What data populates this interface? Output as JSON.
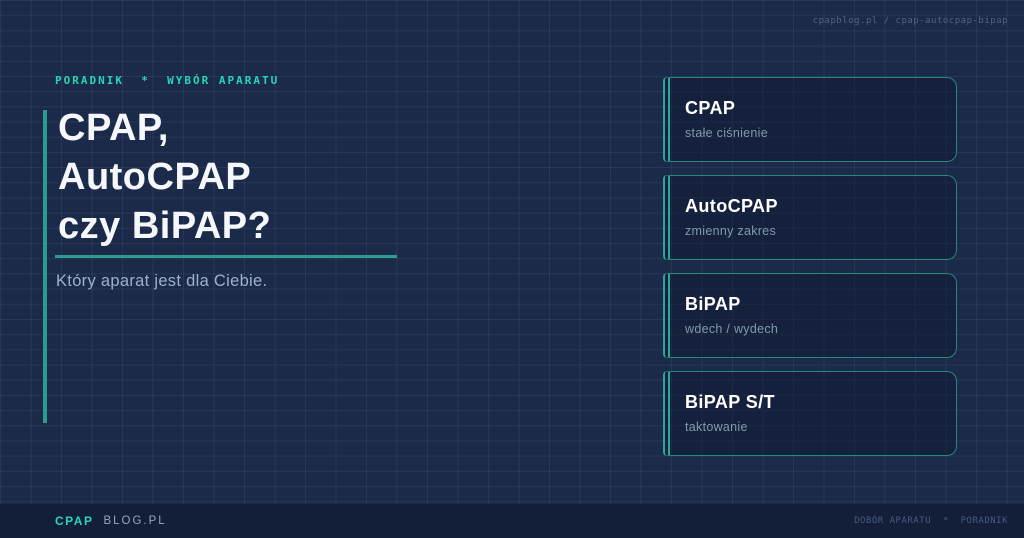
{
  "header": {
    "slug": "cpapblog.pl / cpap-autocpap-bipap"
  },
  "hero": {
    "eyebrow": "PORADNIK  *  WYBÓR APARATU",
    "title_lines": [
      "CPAP,",
      "AutoCPAP",
      "czy BiPAP?"
    ],
    "subtitle": "Który aparat jest dla Ciebie."
  },
  "cards": [
    {
      "title": "CPAP",
      "subtitle": "stałe ciśnienie"
    },
    {
      "title": "AutoCPAP",
      "subtitle": "zmienny zakres"
    },
    {
      "title": "BiPAP",
      "subtitle": "wdech / wydech"
    },
    {
      "title": "BiPAP S/T",
      "subtitle": "taktowanie"
    }
  ],
  "footer": {
    "brand_primary": "CPAP",
    "brand_secondary": "BLOG.PL",
    "tagline": "DOBÓR APARATU  *  PORADNIK"
  },
  "colors": {
    "background": "#1c2a49",
    "footer_background": "#131e38",
    "accent_teal": "#2a9d8c",
    "bright_teal": "#29d5b7",
    "card_border": "#25897b",
    "heading_text": "#f5f7fb",
    "muted_text": "#9db1c8"
  }
}
